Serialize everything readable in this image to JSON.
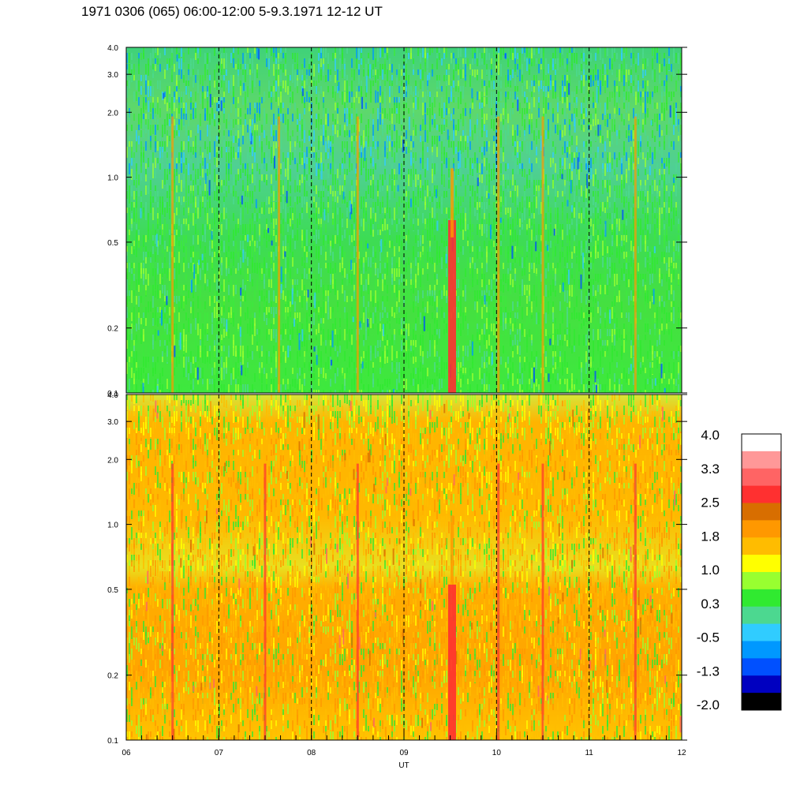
{
  "title": "1971 0306 (065) 06:00-12:00 5-9.3.1971  12-12 UT",
  "chart_data": [
    {
      "type": "heatmap",
      "panel": "upper",
      "x_range": [
        6,
        12
      ],
      "y_range": [
        0.1,
        4.0
      ],
      "y_scale": "log",
      "y_ticks": [
        "0.1",
        "0.2",
        "0.5",
        "1.0",
        "2.0",
        "3.0",
        "4.0"
      ],
      "y_tick_values": [
        0.1,
        0.2,
        0.5,
        1.0,
        2.0,
        3.0,
        4.0
      ],
      "vertical_dashed_lines_at": [
        7,
        8,
        9,
        10,
        11
      ],
      "dominant_colors": "green and blue-green, with narrow red/orange vertical streaks",
      "bright_streaks_at_hours": [
        6.5,
        7.65,
        8.5,
        9.52,
        10.02,
        10.5,
        11.5
      ]
    },
    {
      "type": "heatmap",
      "panel": "lower",
      "x_range": [
        6,
        12
      ],
      "y_range": [
        0.1,
        4.0
      ],
      "y_scale": "log",
      "y_ticks": [
        "0.1",
        "0.2",
        "0.5",
        "1.0",
        "2.0",
        "3.0",
        "4.0"
      ],
      "y_tick_values": [
        0.1,
        0.2,
        0.5,
        1.0,
        2.0,
        3.0,
        4.0
      ],
      "vertical_dashed_lines_at": [
        7,
        8,
        9,
        10,
        11
      ],
      "dominant_colors": "yellow and orange, with red vertical streaks",
      "bright_streaks_at_hours": [
        6.5,
        7.5,
        8.5,
        9.52,
        10.02,
        10.5,
        11.5
      ]
    }
  ],
  "x_axis": {
    "label": "UT",
    "tick_labels": [
      "06",
      "07",
      "08",
      "09",
      "10",
      "11",
      "12"
    ],
    "tick_values": [
      6,
      7,
      8,
      9,
      10,
      11,
      12
    ]
  },
  "colorbar": {
    "labels": [
      "4.0",
      "3.3",
      "2.5",
      "1.8",
      "1.0",
      "0.3",
      "-0.5",
      "-1.3",
      "-2.0"
    ],
    "label_values": [
      4.0,
      3.3,
      2.5,
      1.8,
      1.0,
      0.3,
      -0.5,
      -1.3,
      -2.0
    ],
    "colors_top_to_bottom": [
      "#ffffff",
      "#ff9898",
      "#ff6464",
      "#ff3030",
      "#d86e00",
      "#ff9800",
      "#ffbc00",
      "#ffff00",
      "#98ff30",
      "#30ea30",
      "#4cd890",
      "#30ccff",
      "#0098ff",
      "#0050ff",
      "#0000c0",
      "#000000"
    ]
  }
}
